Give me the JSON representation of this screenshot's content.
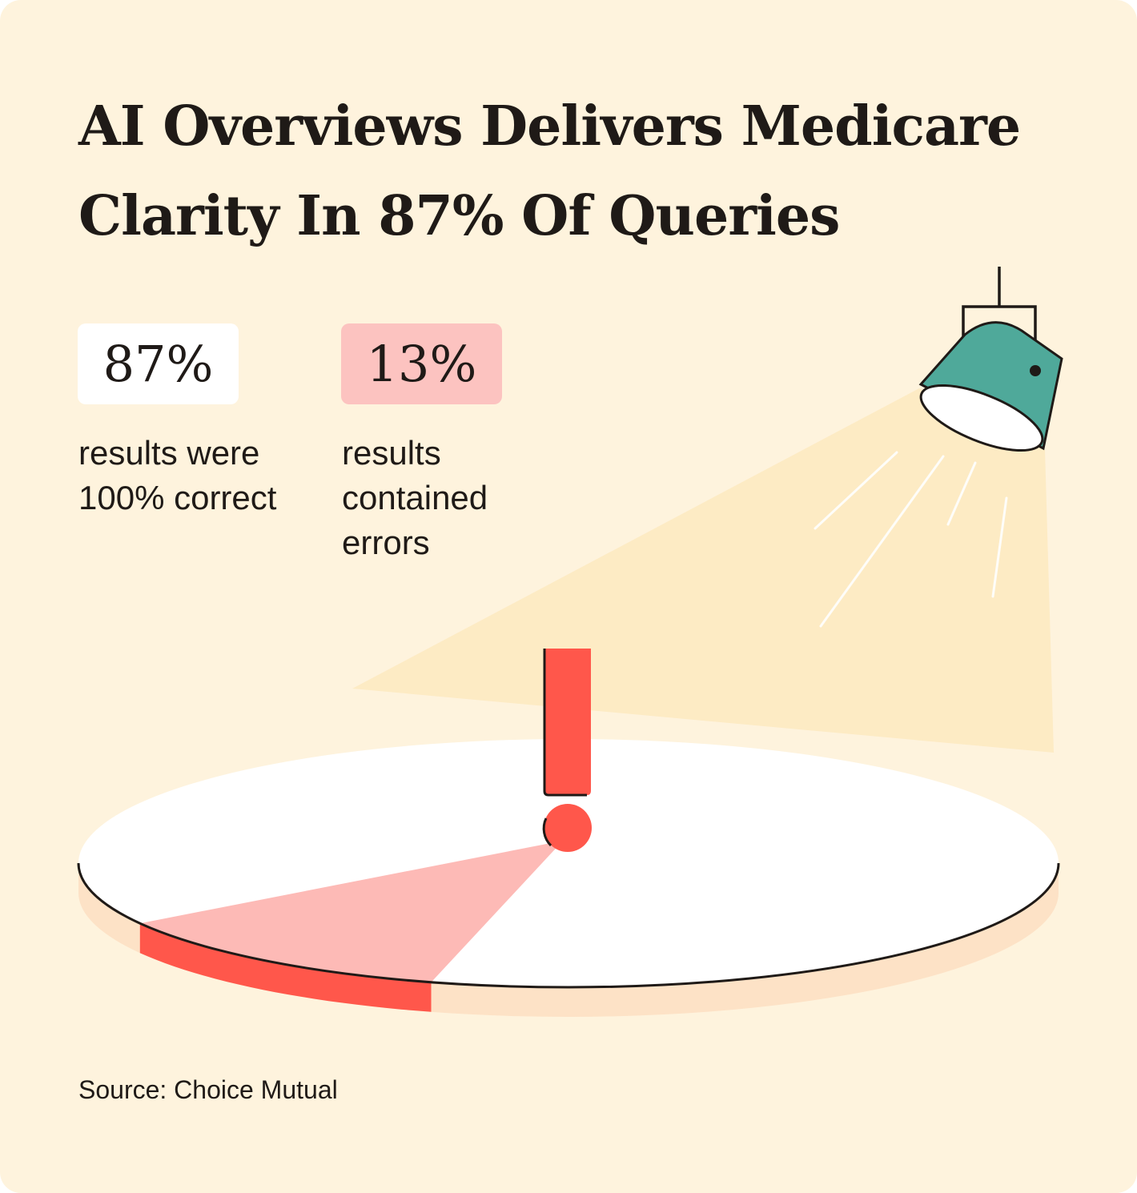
{
  "title": "AI Overviews Delivers Medicare Clarity In 87% Of Queries",
  "stats": [
    {
      "value_label": "87%",
      "description": "results were 100% correct",
      "box_color": "#ffffff"
    },
    {
      "value_label": "13%",
      "description": "results contained errors",
      "box_color": "#fcc3c0"
    }
  ],
  "source": "Source: Choice Mutual",
  "chart_data": {
    "type": "pie",
    "labels": [
      "results were 100% correct",
      "results contained errors"
    ],
    "values": [
      87,
      13
    ],
    "colors": [
      "#ffffff",
      "#fdbab6"
    ],
    "accent_colors": [
      "#fde2c6",
      "#ff574b"
    ]
  },
  "icons": [
    "spotlight-lamp-icon",
    "exclamation-icon"
  ]
}
